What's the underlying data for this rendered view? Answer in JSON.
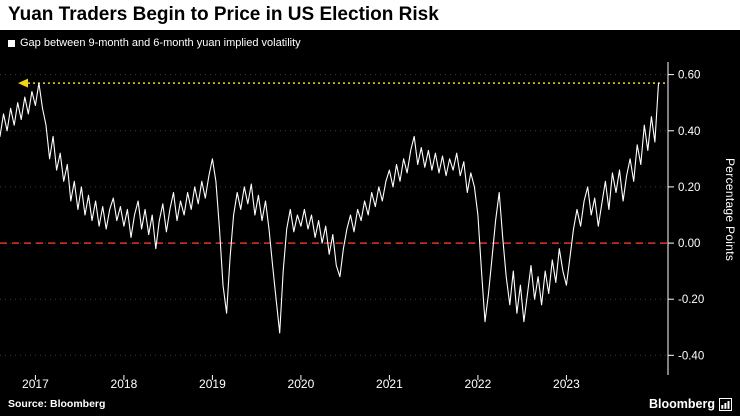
{
  "title": "Yuan Traders Begin to Price in US Election Risk",
  "legend": {
    "label": "Gap between 9-month and 6-month yuan implied volatility"
  },
  "y_axis_title": "Percentage Points",
  "source": "Source: Bloomberg",
  "logo_text": "Bloomberg",
  "colors": {
    "background": "#000000",
    "header_background": "#ffffff",
    "line": "#ffffff",
    "zero_line": "#e0332a",
    "threshold_line": "#f3d515",
    "grid": "#3d3d3d",
    "axis": "#ffffff",
    "text": "#ffffff"
  },
  "chart_data": {
    "type": "line",
    "title": "Gap between 9-month and 6-month yuan implied volatility",
    "xlabel": "",
    "ylabel": "Percentage Points",
    "legend_position": "top-left",
    "grid": "dotted-horizontal",
    "xlim": [
      2016.6,
      2024.08
    ],
    "ylim": [
      -0.47,
      0.645
    ],
    "x_ticks": [
      2017,
      2018,
      2019,
      2020,
      2021,
      2022,
      2023
    ],
    "x_tick_labels": [
      "2017",
      "2018",
      "2019",
      "2020",
      "2021",
      "2022",
      "2023"
    ],
    "y_ticks": [
      0.6,
      0.4,
      0.2,
      0.0,
      -0.2,
      -0.4
    ],
    "y_tick_labels": [
      "0.60",
      "0.40",
      "0.20",
      "0.00",
      "-0.20",
      "-0.40"
    ],
    "zero_line": 0.0,
    "threshold_line": 0.57,
    "points": [
      [
        2016.6,
        0.38
      ],
      [
        2016.64,
        0.46
      ],
      [
        2016.68,
        0.4
      ],
      [
        2016.72,
        0.48
      ],
      [
        2016.76,
        0.42
      ],
      [
        2016.8,
        0.5
      ],
      [
        2016.84,
        0.44
      ],
      [
        2016.88,
        0.52
      ],
      [
        2016.92,
        0.46
      ],
      [
        2016.96,
        0.54
      ],
      [
        2017.0,
        0.49
      ],
      [
        2017.04,
        0.57
      ],
      [
        2017.08,
        0.48
      ],
      [
        2017.12,
        0.42
      ],
      [
        2017.16,
        0.3
      ],
      [
        2017.2,
        0.38
      ],
      [
        2017.24,
        0.26
      ],
      [
        2017.28,
        0.32
      ],
      [
        2017.32,
        0.22
      ],
      [
        2017.36,
        0.28
      ],
      [
        2017.4,
        0.15
      ],
      [
        2017.44,
        0.22
      ],
      [
        2017.48,
        0.12
      ],
      [
        2017.52,
        0.2
      ],
      [
        2017.56,
        0.1
      ],
      [
        2017.6,
        0.17
      ],
      [
        2017.64,
        0.08
      ],
      [
        2017.68,
        0.15
      ],
      [
        2017.72,
        0.06
      ],
      [
        2017.76,
        0.13
      ],
      [
        2017.8,
        0.05
      ],
      [
        2017.84,
        0.12
      ],
      [
        2017.88,
        0.16
      ],
      [
        2017.92,
        0.08
      ],
      [
        2017.96,
        0.13
      ],
      [
        2018.0,
        0.06
      ],
      [
        2018.04,
        0.12
      ],
      [
        2018.08,
        0.02
      ],
      [
        2018.12,
        0.1
      ],
      [
        2018.16,
        0.15
      ],
      [
        2018.2,
        0.05
      ],
      [
        2018.24,
        0.12
      ],
      [
        2018.28,
        0.03
      ],
      [
        2018.32,
        0.1
      ],
      [
        2018.36,
        -0.02
      ],
      [
        2018.4,
        0.08
      ],
      [
        2018.44,
        0.14
      ],
      [
        2018.48,
        0.04
      ],
      [
        2018.52,
        0.12
      ],
      [
        2018.56,
        0.18
      ],
      [
        2018.6,
        0.08
      ],
      [
        2018.64,
        0.15
      ],
      [
        2018.68,
        0.1
      ],
      [
        2018.72,
        0.18
      ],
      [
        2018.76,
        0.12
      ],
      [
        2018.8,
        0.2
      ],
      [
        2018.84,
        0.14
      ],
      [
        2018.88,
        0.22
      ],
      [
        2018.92,
        0.16
      ],
      [
        2018.96,
        0.24
      ],
      [
        2019.0,
        0.3
      ],
      [
        2019.04,
        0.22
      ],
      [
        2019.08,
        0.05
      ],
      [
        2019.12,
        -0.15
      ],
      [
        2019.16,
        -0.25
      ],
      [
        2019.2,
        -0.05
      ],
      [
        2019.24,
        0.1
      ],
      [
        2019.28,
        0.18
      ],
      [
        2019.32,
        0.12
      ],
      [
        2019.36,
        0.2
      ],
      [
        2019.4,
        0.14
      ],
      [
        2019.44,
        0.21
      ],
      [
        2019.48,
        0.1
      ],
      [
        2019.52,
        0.17
      ],
      [
        2019.56,
        0.08
      ],
      [
        2019.6,
        0.15
      ],
      [
        2019.64,
        0.05
      ],
      [
        2019.68,
        -0.08
      ],
      [
        2019.72,
        -0.2
      ],
      [
        2019.76,
        -0.32
      ],
      [
        2019.8,
        -0.1
      ],
      [
        2019.84,
        0.05
      ],
      [
        2019.88,
        0.12
      ],
      [
        2019.92,
        0.04
      ],
      [
        2019.96,
        0.1
      ],
      [
        2020.0,
        0.06
      ],
      [
        2020.04,
        0.12
      ],
      [
        2020.08,
        0.05
      ],
      [
        2020.12,
        0.1
      ],
      [
        2020.16,
        0.02
      ],
      [
        2020.2,
        0.08
      ],
      [
        2020.24,
        0.0
      ],
      [
        2020.28,
        0.06
      ],
      [
        2020.32,
        -0.04
      ],
      [
        2020.36,
        0.03
      ],
      [
        2020.4,
        -0.08
      ],
      [
        2020.44,
        -0.12
      ],
      [
        2020.48,
        -0.02
      ],
      [
        2020.52,
        0.05
      ],
      [
        2020.56,
        0.1
      ],
      [
        2020.6,
        0.04
      ],
      [
        2020.64,
        0.12
      ],
      [
        2020.68,
        0.08
      ],
      [
        2020.72,
        0.15
      ],
      [
        2020.76,
        0.1
      ],
      [
        2020.8,
        0.18
      ],
      [
        2020.84,
        0.13
      ],
      [
        2020.88,
        0.2
      ],
      [
        2020.92,
        0.15
      ],
      [
        2020.96,
        0.22
      ],
      [
        2021.0,
        0.26
      ],
      [
        2021.04,
        0.2
      ],
      [
        2021.08,
        0.28
      ],
      [
        2021.12,
        0.22
      ],
      [
        2021.16,
        0.3
      ],
      [
        2021.2,
        0.25
      ],
      [
        2021.24,
        0.33
      ],
      [
        2021.28,
        0.38
      ],
      [
        2021.32,
        0.28
      ],
      [
        2021.36,
        0.34
      ],
      [
        2021.4,
        0.27
      ],
      [
        2021.44,
        0.33
      ],
      [
        2021.48,
        0.26
      ],
      [
        2021.52,
        0.32
      ],
      [
        2021.56,
        0.25
      ],
      [
        2021.6,
        0.31
      ],
      [
        2021.64,
        0.24
      ],
      [
        2021.68,
        0.3
      ],
      [
        2021.72,
        0.26
      ],
      [
        2021.76,
        0.32
      ],
      [
        2021.8,
        0.24
      ],
      [
        2021.84,
        0.29
      ],
      [
        2021.88,
        0.18
      ],
      [
        2021.92,
        0.25
      ],
      [
        2021.96,
        0.2
      ],
      [
        2022.0,
        0.1
      ],
      [
        2022.04,
        -0.1
      ],
      [
        2022.08,
        -0.28
      ],
      [
        2022.12,
        -0.18
      ],
      [
        2022.16,
        -0.05
      ],
      [
        2022.2,
        0.08
      ],
      [
        2022.24,
        0.18
      ],
      [
        2022.28,
        0.02
      ],
      [
        2022.32,
        -0.12
      ],
      [
        2022.36,
        -0.22
      ],
      [
        2022.4,
        -0.1
      ],
      [
        2022.44,
        -0.25
      ],
      [
        2022.48,
        -0.15
      ],
      [
        2022.52,
        -0.28
      ],
      [
        2022.56,
        -0.18
      ],
      [
        2022.6,
        -0.08
      ],
      [
        2022.64,
        -0.2
      ],
      [
        2022.68,
        -0.12
      ],
      [
        2022.72,
        -0.22
      ],
      [
        2022.76,
        -0.1
      ],
      [
        2022.8,
        -0.18
      ],
      [
        2022.84,
        -0.06
      ],
      [
        2022.88,
        -0.14
      ],
      [
        2022.92,
        -0.02
      ],
      [
        2022.96,
        -0.1
      ],
      [
        2023.0,
        -0.15
      ],
      [
        2023.04,
        -0.05
      ],
      [
        2023.08,
        0.05
      ],
      [
        2023.12,
        0.12
      ],
      [
        2023.16,
        0.06
      ],
      [
        2023.2,
        0.15
      ],
      [
        2023.24,
        0.2
      ],
      [
        2023.28,
        0.1
      ],
      [
        2023.32,
        0.16
      ],
      [
        2023.36,
        0.06
      ],
      [
        2023.4,
        0.14
      ],
      [
        2023.44,
        0.22
      ],
      [
        2023.48,
        0.12
      ],
      [
        2023.52,
        0.25
      ],
      [
        2023.56,
        0.18
      ],
      [
        2023.6,
        0.26
      ],
      [
        2023.64,
        0.15
      ],
      [
        2023.68,
        0.24
      ],
      [
        2023.72,
        0.3
      ],
      [
        2023.76,
        0.22
      ],
      [
        2023.8,
        0.35
      ],
      [
        2023.84,
        0.28
      ],
      [
        2023.88,
        0.42
      ],
      [
        2023.92,
        0.33
      ],
      [
        2023.96,
        0.45
      ],
      [
        2024.0,
        0.36
      ],
      [
        2024.04,
        0.57
      ]
    ]
  }
}
